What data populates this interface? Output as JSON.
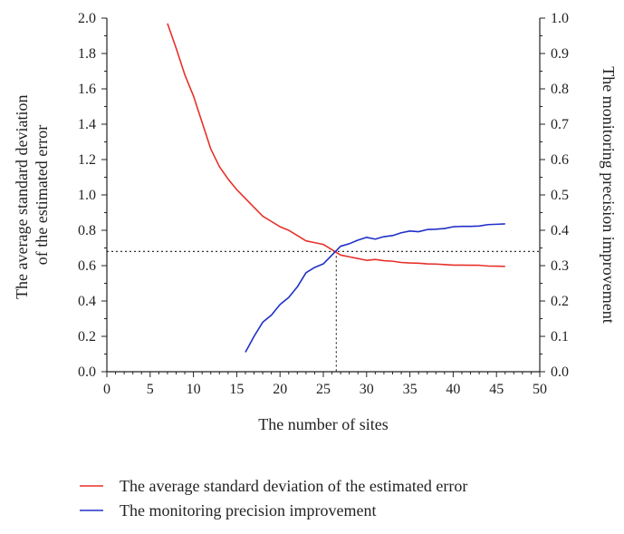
{
  "chart_data": {
    "type": "line",
    "x": {
      "label": "The number of sites",
      "range": [
        0,
        50
      ],
      "ticks": [
        0,
        5,
        10,
        15,
        20,
        25,
        30,
        35,
        40,
        45,
        50
      ],
      "minor_step": 1
    },
    "y_left": {
      "label_lines": [
        "The average standard deviation",
        "of the estimated error"
      ],
      "range": [
        0,
        2.0
      ],
      "ticks": [
        "0.0",
        "0.2",
        "0.4",
        "0.6",
        "0.8",
        "1.0",
        "1.2",
        "1.4",
        "1.6",
        "1.8",
        "2.0"
      ],
      "minor_step": 0.1
    },
    "y_right": {
      "label": "The monitoring precision improvement",
      "range": [
        0,
        1.0
      ],
      "ticks": [
        "0.0",
        "0.1",
        "0.2",
        "0.3",
        "0.4",
        "0.5",
        "0.6",
        "0.7",
        "0.8",
        "0.9",
        "1.0"
      ],
      "minor_step": 0.05
    },
    "series": [
      {
        "name": "The average standard deviation of the estimated error",
        "color": "#e8302a",
        "axis": "left",
        "points": [
          [
            7,
            1.97
          ],
          [
            8,
            1.83
          ],
          [
            9,
            1.68
          ],
          [
            10,
            1.56
          ],
          [
            11,
            1.41
          ],
          [
            12,
            1.26
          ],
          [
            13,
            1.16
          ],
          [
            14,
            1.09
          ],
          [
            15,
            1.03
          ],
          [
            16,
            0.98
          ],
          [
            17,
            0.93
          ],
          [
            18,
            0.88
          ],
          [
            19,
            0.85
          ],
          [
            20,
            0.82
          ],
          [
            21,
            0.8
          ],
          [
            22,
            0.77
          ],
          [
            23,
            0.74
          ],
          [
            24,
            0.73
          ],
          [
            25,
            0.72
          ],
          [
            26,
            0.69
          ],
          [
            27,
            0.66
          ],
          [
            28,
            0.65
          ],
          [
            29,
            0.64
          ],
          [
            30,
            0.63
          ],
          [
            31,
            0.635
          ],
          [
            32,
            0.628
          ],
          [
            33,
            0.625
          ],
          [
            34,
            0.618
          ],
          [
            35,
            0.615
          ],
          [
            36,
            0.614
          ],
          [
            37,
            0.61
          ],
          [
            38,
            0.609
          ],
          [
            39,
            0.606
          ],
          [
            40,
            0.603
          ],
          [
            41,
            0.603
          ],
          [
            42,
            0.602
          ],
          [
            43,
            0.602
          ],
          [
            44,
            0.598
          ],
          [
            45,
            0.597
          ],
          [
            46,
            0.596
          ]
        ]
      },
      {
        "name": "The monitoring precision improvement",
        "color": "#2030c8",
        "axis": "right",
        "points": [
          [
            16,
            0.055
          ],
          [
            17,
            0.1
          ],
          [
            18,
            0.14
          ],
          [
            19,
            0.16
          ],
          [
            20,
            0.19
          ],
          [
            21,
            0.21
          ],
          [
            22,
            0.24
          ],
          [
            23,
            0.28
          ],
          [
            24,
            0.295
          ],
          [
            25,
            0.305
          ],
          [
            26,
            0.33
          ],
          [
            27,
            0.355
          ],
          [
            28,
            0.362
          ],
          [
            29,
            0.372
          ],
          [
            30,
            0.38
          ],
          [
            31,
            0.375
          ],
          [
            32,
            0.382
          ],
          [
            33,
            0.385
          ],
          [
            34,
            0.393
          ],
          [
            35,
            0.398
          ],
          [
            36,
            0.396
          ],
          [
            37,
            0.402
          ],
          [
            38,
            0.403
          ],
          [
            39,
            0.405
          ],
          [
            40,
            0.41
          ],
          [
            41,
            0.411
          ],
          [
            42,
            0.411
          ],
          [
            43,
            0.412
          ],
          [
            44,
            0.416
          ],
          [
            45,
            0.417
          ],
          [
            46,
            0.418
          ]
        ]
      }
    ],
    "reference_lines": {
      "horizontal_y_left": 0.68,
      "vertical_x": 26.5
    },
    "legend_position": "bottom-left"
  }
}
